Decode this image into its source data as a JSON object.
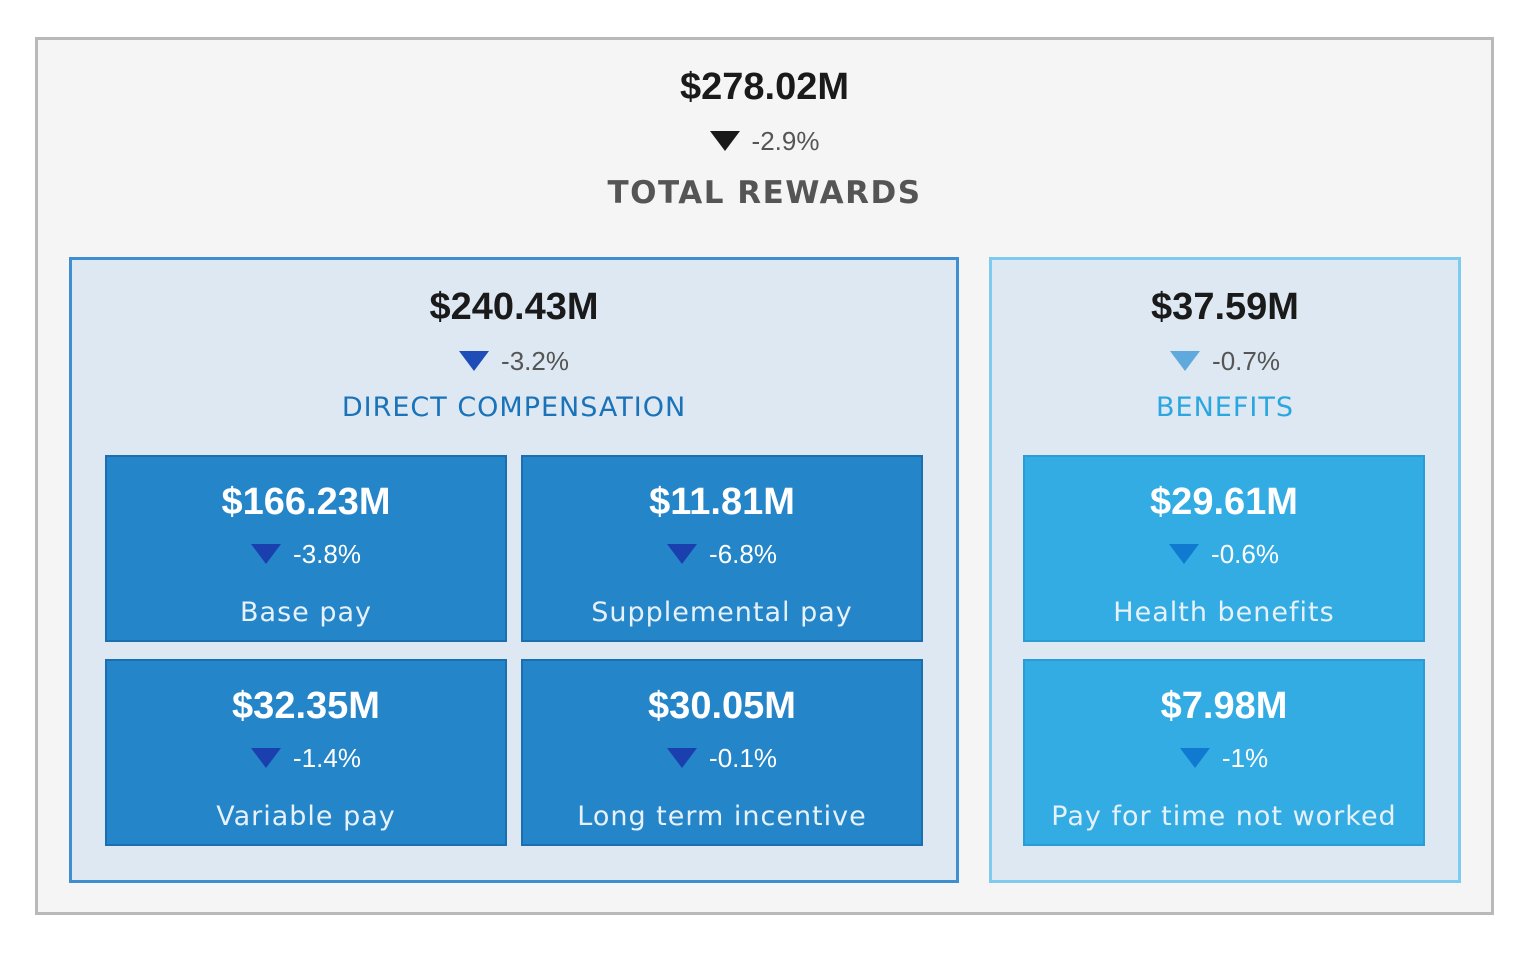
{
  "total": {
    "value": "$278.02M",
    "delta": "-2.9%",
    "label": "TOTAL REWARDS"
  },
  "direct": {
    "value": "$240.43M",
    "delta": "-3.2%",
    "label": "DIRECT COMPENSATION",
    "tiles": [
      {
        "value": "$166.23M",
        "delta": "-3.8%",
        "label": "Base pay"
      },
      {
        "value": "$11.81M",
        "delta": "-6.8%",
        "label": "Supplemental pay"
      },
      {
        "value": "$32.35M",
        "delta": "-1.4%",
        "label": "Variable pay"
      },
      {
        "value": "$30.05M",
        "delta": "-0.1%",
        "label": "Long term incentive"
      }
    ]
  },
  "benefits": {
    "value": "$37.59M",
    "delta": "-0.7%",
    "label": "BENEFITS",
    "tiles": [
      {
        "value": "$29.61M",
        "delta": "-0.6%",
        "label": "Health benefits"
      },
      {
        "value": "$7.98M",
        "delta": "-1%",
        "label": "Pay for time not worked"
      }
    ]
  },
  "icons": {
    "down": "triangle-down-icon"
  },
  "colors": {
    "direct_accent": "#1a72b9",
    "benefits_accent": "#2aa6e0",
    "direct_tile": "#2585c9",
    "benefits_tile": "#33ace3"
  }
}
